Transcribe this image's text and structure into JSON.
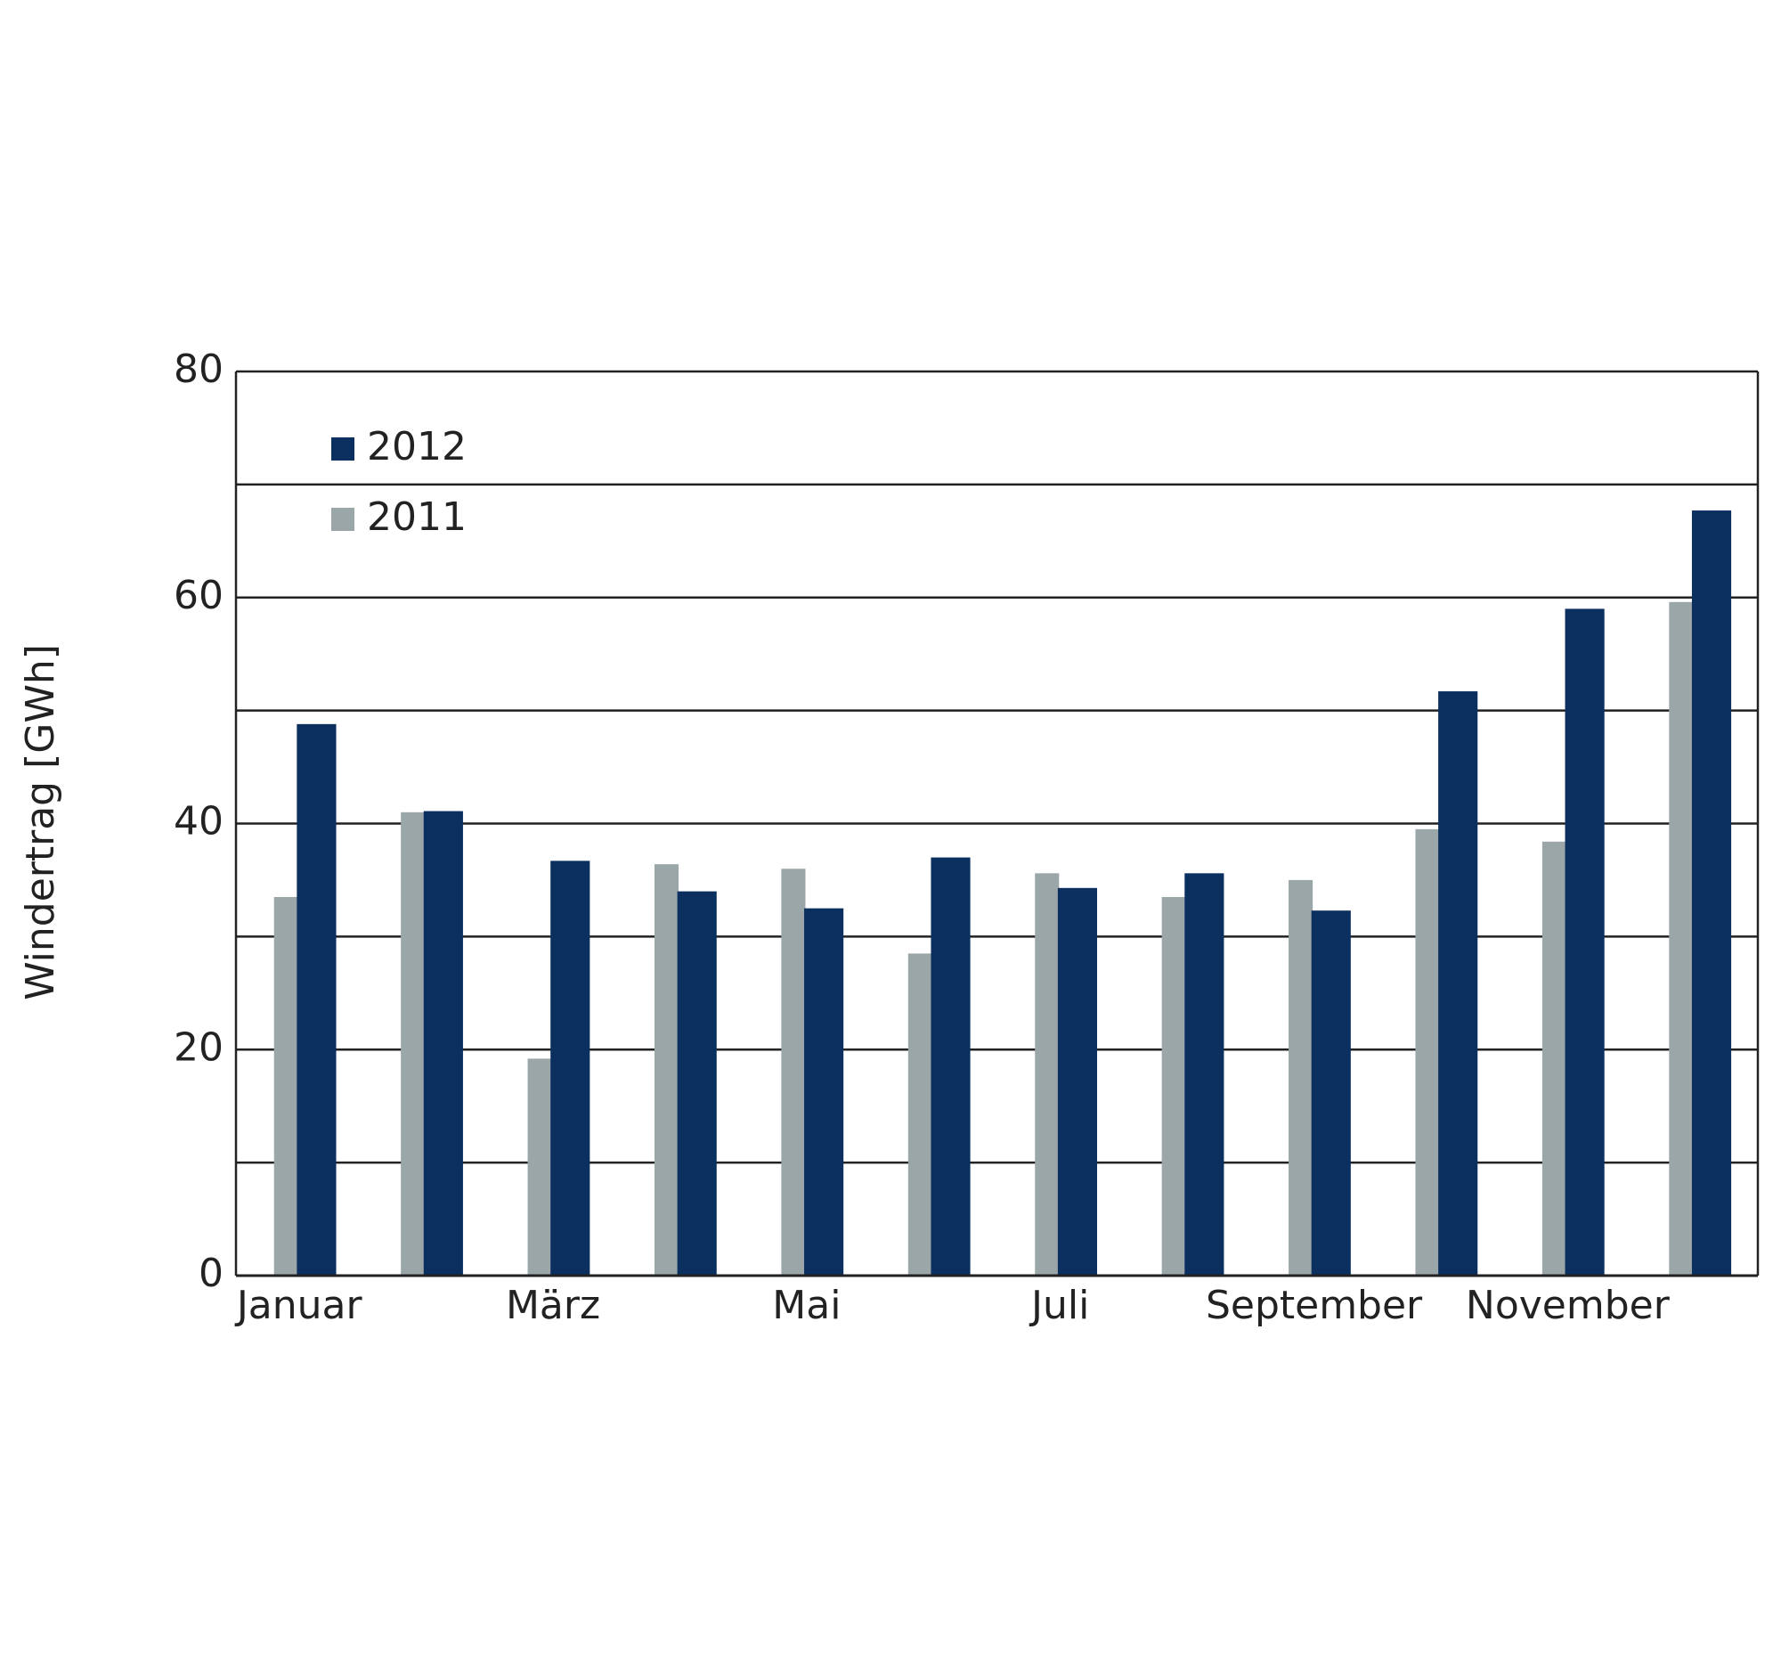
{
  "chart_data": {
    "type": "bar",
    "ylabel": "Windertrag [GWh]",
    "categories": [
      "Januar",
      null,
      "März",
      null,
      "Mai",
      null,
      "Juli",
      null,
      "September",
      null,
      "November",
      null
    ],
    "series": [
      {
        "name": "2012",
        "color": "#0b2f5f",
        "values": [
          48.8,
          41.1,
          36.7,
          34,
          32.5,
          37,
          34.3,
          35.6,
          32.3,
          51.7,
          59,
          67.7
        ]
      },
      {
        "name": "2011",
        "color": "#9ba6a9",
        "values": [
          33.5,
          41,
          19.2,
          36.4,
          36,
          28.5,
          35.6,
          33.5,
          35,
          39.5,
          38.4,
          59.6
        ]
      }
    ],
    "ylim": [
      0,
      80
    ],
    "yticks": [
      0,
      20,
      40,
      60,
      80
    ],
    "minor_gridlines": [
      10,
      30,
      50,
      70
    ],
    "grid": true,
    "legend": "upper left"
  }
}
